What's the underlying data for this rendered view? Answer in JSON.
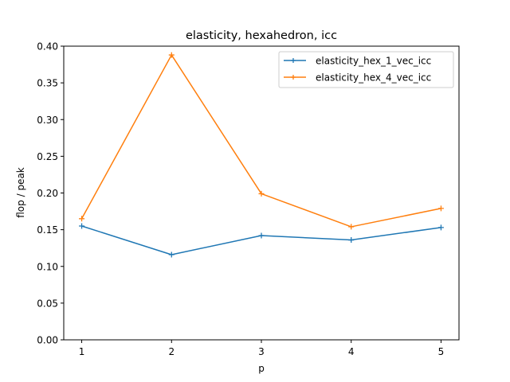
{
  "chart_data": {
    "type": "line",
    "title": "elasticity, hexahedron, icc",
    "xlabel": "p",
    "ylabel": "flop / peak",
    "x": [
      1,
      2,
      3,
      4,
      5
    ],
    "xticks": [
      1,
      2,
      3,
      4,
      5
    ],
    "xlim": [
      0.8,
      5.2
    ],
    "ylim": [
      0.0,
      0.4
    ],
    "yticks": [
      0.0,
      0.05,
      0.1,
      0.15,
      0.2,
      0.25,
      0.3,
      0.35,
      0.4
    ],
    "ytick_labels": [
      "0.00",
      "0.05",
      "0.10",
      "0.15",
      "0.20",
      "0.25",
      "0.30",
      "0.35",
      "0.40"
    ],
    "legend_position": "top-right",
    "grid": false,
    "series": [
      {
        "name": "elasticity_hex_1_vec_icc",
        "color": "#1f77b4",
        "values": [
          0.155,
          0.116,
          0.142,
          0.136,
          0.153
        ]
      },
      {
        "name": "elasticity_hex_4_vec_icc",
        "color": "#ff7f0e",
        "values": [
          0.165,
          0.388,
          0.199,
          0.154,
          0.179
        ]
      }
    ]
  }
}
